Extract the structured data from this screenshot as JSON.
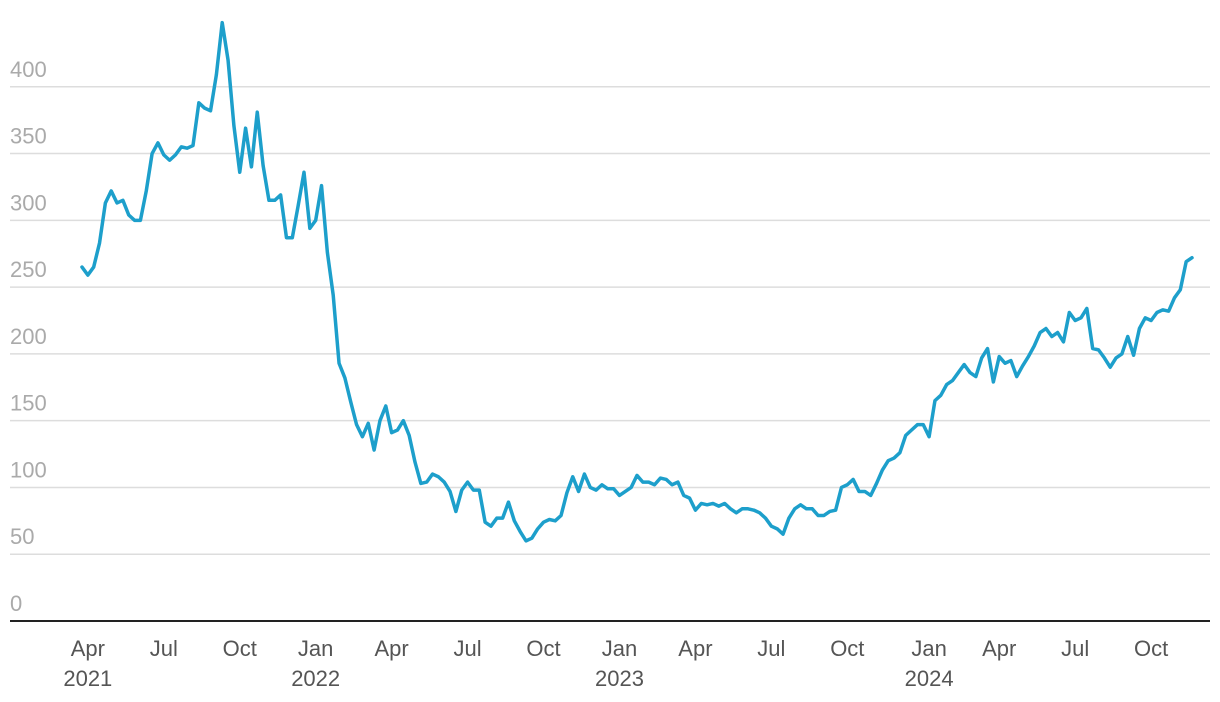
{
  "chart_data": {
    "type": "line",
    "categories": [
      null,
      "Apr\n2021",
      null,
      null,
      null,
      null,
      null,
      null,
      null,
      null,
      null,
      null,
      null,
      null,
      "Jul",
      null,
      null,
      null,
      null,
      null,
      null,
      null,
      null,
      null,
      null,
      null,
      null,
      "Oct",
      null,
      null,
      null,
      null,
      null,
      null,
      null,
      null,
      null,
      null,
      null,
      null,
      "Jan\n2022",
      null,
      null,
      null,
      null,
      null,
      null,
      null,
      null,
      null,
      null,
      null,
      null,
      "Apr",
      null,
      null,
      null,
      null,
      null,
      null,
      null,
      null,
      null,
      null,
      null,
      null,
      "Jul",
      null,
      null,
      null,
      null,
      null,
      null,
      null,
      null,
      null,
      null,
      null,
      null,
      "Oct",
      null,
      null,
      null,
      null,
      null,
      null,
      null,
      null,
      null,
      null,
      null,
      null,
      "Jan\n2023",
      null,
      null,
      null,
      null,
      null,
      null,
      null,
      null,
      null,
      null,
      null,
      null,
      "Apr",
      null,
      null,
      null,
      null,
      null,
      null,
      null,
      null,
      null,
      null,
      null,
      null,
      "Jul",
      null,
      null,
      null,
      null,
      null,
      null,
      null,
      null,
      null,
      null,
      null,
      null,
      "Oct",
      null,
      null,
      null,
      null,
      null,
      null,
      null,
      null,
      null,
      null,
      null,
      null,
      null,
      "Jan\n2024",
      null,
      null,
      null,
      null,
      null,
      null,
      null,
      null,
      null,
      null,
      null,
      "Apr",
      null,
      null,
      null,
      null,
      null,
      null,
      null,
      null,
      null,
      null,
      null,
      null,
      "Jul",
      null,
      null,
      null,
      null,
      null,
      null,
      null,
      null,
      null,
      null,
      null,
      null,
      "Oct",
      null,
      null,
      null,
      null,
      null,
      null,
      null
    ],
    "series": [
      {
        "color": "#1d9fcb",
        "values": [
          265,
          259,
          265,
          283,
          313,
          322,
          313,
          315,
          304,
          300,
          300,
          322,
          350,
          358,
          349,
          345,
          349,
          355,
          354,
          356,
          388,
          384,
          382,
          409,
          448,
          420,
          371,
          336,
          369,
          340,
          381,
          341,
          315,
          315,
          319,
          287,
          287,
          311,
          336,
          294,
          300,
          326,
          276,
          244,
          193,
          182,
          164,
          147,
          138,
          148,
          128,
          150,
          161,
          141,
          143,
          150,
          139,
          119,
          103,
          104,
          110,
          108,
          104,
          97,
          82,
          98,
          104,
          98,
          98,
          74,
          71,
          77,
          77,
          89,
          75,
          67,
          60,
          62,
          69,
          74,
          76,
          75,
          79,
          96,
          108,
          97,
          110,
          100,
          98,
          102,
          99,
          99,
          94,
          97,
          100,
          109,
          104,
          104,
          102,
          107,
          106,
          102,
          104,
          94,
          92,
          83,
          88,
          87,
          88,
          86,
          88,
          84,
          81,
          84,
          84,
          83,
          81,
          77,
          71,
          69,
          65,
          77,
          84,
          87,
          84,
          84,
          79,
          79,
          82,
          83,
          100,
          102,
          106,
          97,
          97,
          94,
          103,
          113,
          120,
          122,
          126,
          139,
          143,
          147,
          147,
          138,
          165,
          169,
          177,
          180,
          186,
          192,
          186,
          183,
          197,
          204,
          179,
          198,
          193,
          195,
          183,
          191,
          198,
          206,
          216,
          219,
          213,
          216,
          209,
          231,
          225,
          227,
          234,
          204,
          203,
          197,
          190,
          197,
          200,
          213,
          199,
          219,
          227,
          225,
          231,
          233,
          232,
          242,
          248,
          269,
          272
        ]
      }
    ],
    "ylim": [
      0,
      450
    ],
    "yticks": [
      0,
      50,
      100,
      150,
      200,
      250,
      300,
      350,
      400
    ],
    "grid": true
  }
}
